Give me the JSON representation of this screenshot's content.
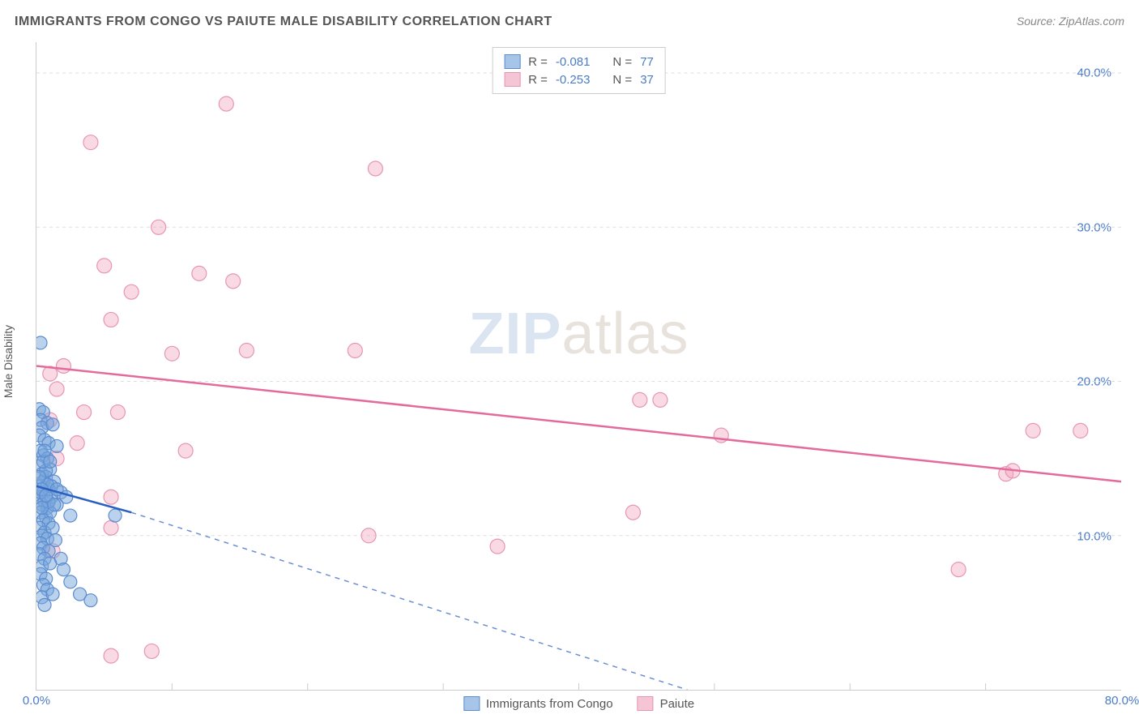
{
  "title": "IMMIGRANTS FROM CONGO VS PAIUTE MALE DISABILITY CORRELATION CHART",
  "source": "Source: ZipAtlas.com",
  "watermark_zip": "ZIP",
  "watermark_atlas": "atlas",
  "y_axis_label": "Male Disability",
  "chart": {
    "type": "scatter",
    "xlim": [
      0,
      80
    ],
    "ylim": [
      0,
      42
    ],
    "x_ticks": [
      0,
      80
    ],
    "x_tick_labels": [
      "0.0%",
      "80.0%"
    ],
    "y_ticks": [
      10,
      20,
      30,
      40
    ],
    "y_tick_labels": [
      "10.0%",
      "20.0%",
      "30.0%",
      "40.0%"
    ],
    "grid_color": "#dddddd",
    "background_color": "#ffffff",
    "series": [
      {
        "name": "Immigrants from Congo",
        "color_fill": "#a7c5e8",
        "color_stroke": "#5b8cd0",
        "marker": "circle",
        "marker_radius": 8,
        "R": -0.081,
        "N": 77,
        "trend": {
          "x0": 0,
          "y0": 13.2,
          "x1": 7,
          "y1": 11.5,
          "dash_x1": 48,
          "dash_y1": 0
        },
        "points": [
          [
            0.3,
            22.5
          ],
          [
            0.2,
            18.2
          ],
          [
            0.5,
            18.0
          ],
          [
            0.3,
            17.5
          ],
          [
            0.8,
            17.3
          ],
          [
            0.4,
            17.0
          ],
          [
            1.2,
            17.2
          ],
          [
            0.2,
            16.5
          ],
          [
            0.6,
            16.2
          ],
          [
            0.9,
            16.0
          ],
          [
            0.3,
            15.5
          ],
          [
            1.5,
            15.8
          ],
          [
            0.5,
            15.2
          ],
          [
            0.8,
            15.0
          ],
          [
            0.2,
            14.5
          ],
          [
            1.0,
            14.3
          ],
          [
            0.4,
            14.0
          ],
          [
            0.7,
            13.8
          ],
          [
            1.3,
            13.5
          ],
          [
            0.3,
            13.2
          ],
          [
            0.9,
            13.0
          ],
          [
            0.5,
            12.8
          ],
          [
            1.8,
            12.8
          ],
          [
            0.2,
            12.5
          ],
          [
            0.6,
            12.2
          ],
          [
            1.1,
            12.5
          ],
          [
            2.2,
            12.5
          ],
          [
            0.4,
            12.0
          ],
          [
            0.8,
            11.8
          ],
          [
            1.5,
            12.0
          ],
          [
            0.3,
            11.5
          ],
          [
            0.7,
            11.2
          ],
          [
            1.0,
            11.5
          ],
          [
            2.5,
            11.3
          ],
          [
            0.5,
            11.0
          ],
          [
            0.9,
            10.8
          ],
          [
            5.8,
            11.3
          ],
          [
            0.2,
            10.5
          ],
          [
            0.6,
            10.2
          ],
          [
            1.2,
            10.5
          ],
          [
            0.4,
            10.0
          ],
          [
            0.8,
            9.8
          ],
          [
            0.3,
            9.5
          ],
          [
            1.4,
            9.7
          ],
          [
            0.5,
            9.2
          ],
          [
            0.9,
            9.0
          ],
          [
            0.2,
            8.8
          ],
          [
            1.8,
            8.5
          ],
          [
            0.6,
            8.5
          ],
          [
            0.4,
            8.0
          ],
          [
            1.0,
            8.2
          ],
          [
            2.0,
            7.8
          ],
          [
            0.3,
            7.5
          ],
          [
            0.7,
            7.2
          ],
          [
            2.5,
            7.0
          ],
          [
            0.5,
            6.8
          ],
          [
            0.8,
            6.5
          ],
          [
            3.2,
            6.2
          ],
          [
            0.4,
            6.0
          ],
          [
            1.2,
            6.2
          ],
          [
            0.6,
            5.5
          ],
          [
            4.0,
            5.8
          ],
          [
            0.3,
            12.8
          ],
          [
            0.5,
            13.5
          ],
          [
            0.7,
            14.2
          ],
          [
            0.9,
            12.2
          ],
          [
            1.1,
            13.2
          ],
          [
            0.4,
            11.8
          ],
          [
            0.8,
            13.3
          ],
          [
            1.3,
            12.0
          ],
          [
            0.5,
            14.8
          ],
          [
            0.2,
            13.8
          ],
          [
            0.6,
            15.5
          ],
          [
            1.0,
            14.8
          ],
          [
            0.4,
            13.0
          ],
          [
            0.7,
            12.6
          ],
          [
            1.5,
            13.0
          ]
        ]
      },
      {
        "name": "Paiute",
        "color_fill": "#f5c5d5",
        "color_stroke": "#e795b5",
        "marker": "circle",
        "marker_radius": 9,
        "R": -0.253,
        "N": 37,
        "trend": {
          "x0": 0,
          "y0": 21.0,
          "x1": 80,
          "y1": 13.5
        },
        "points": [
          [
            14.0,
            38.0
          ],
          [
            4.0,
            35.5
          ],
          [
            25.0,
            33.8
          ],
          [
            9.0,
            30.0
          ],
          [
            5.0,
            27.5
          ],
          [
            12.0,
            27.0
          ],
          [
            7.0,
            25.8
          ],
          [
            14.5,
            26.5
          ],
          [
            5.5,
            24.0
          ],
          [
            10.0,
            21.8
          ],
          [
            15.5,
            22.0
          ],
          [
            23.5,
            22.0
          ],
          [
            1.0,
            20.5
          ],
          [
            1.5,
            19.5
          ],
          [
            3.5,
            18.0
          ],
          [
            6.0,
            18.0
          ],
          [
            1.0,
            17.5
          ],
          [
            44.5,
            18.8
          ],
          [
            46.0,
            18.8
          ],
          [
            50.5,
            16.5
          ],
          [
            11.0,
            15.5
          ],
          [
            71.5,
            14.0
          ],
          [
            73.5,
            16.8
          ],
          [
            77.0,
            16.8
          ],
          [
            72.0,
            14.2
          ],
          [
            5.5,
            12.5
          ],
          [
            44.0,
            11.5
          ],
          [
            5.5,
            10.5
          ],
          [
            24.5,
            10.0
          ],
          [
            34.0,
            9.3
          ],
          [
            68.0,
            7.8
          ],
          [
            1.2,
            9.0
          ],
          [
            5.5,
            2.2
          ],
          [
            8.5,
            2.5
          ],
          [
            1.5,
            15.0
          ],
          [
            2.0,
            21.0
          ],
          [
            3.0,
            16.0
          ]
        ]
      }
    ],
    "legend_stats_labels": {
      "R": "R =",
      "N": "N ="
    },
    "legend_bottom_labels": [
      "Immigrants from Congo",
      "Paiute"
    ]
  }
}
